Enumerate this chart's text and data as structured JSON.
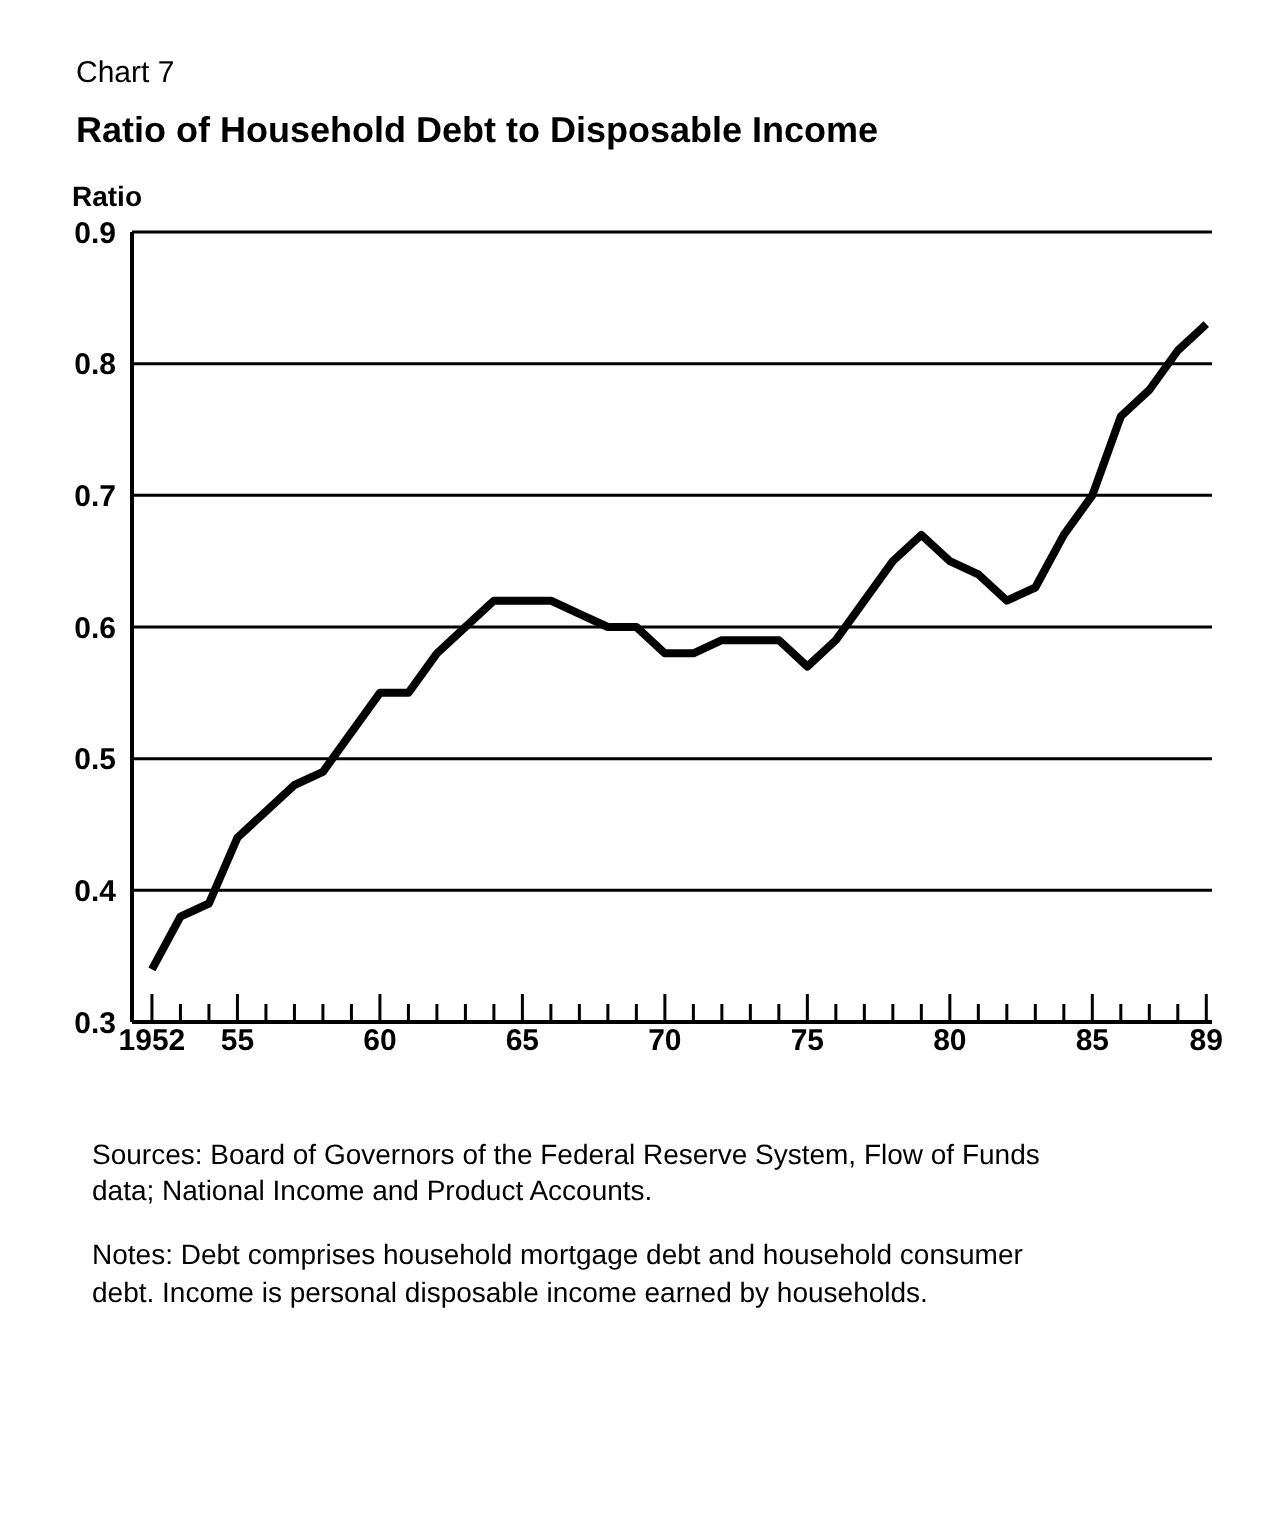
{
  "chart_data": {
    "type": "line",
    "subtitle": "Chart 7",
    "title": "Ratio of Household Debt to Disposable Income",
    "ylabel": "Ratio",
    "x": [
      1952,
      1953,
      1954,
      1955,
      1956,
      1957,
      1958,
      1959,
      1960,
      1961,
      1962,
      1963,
      1964,
      1965,
      1966,
      1967,
      1968,
      1969,
      1970,
      1971,
      1972,
      1973,
      1974,
      1975,
      1976,
      1977,
      1978,
      1979,
      1980,
      1981,
      1982,
      1983,
      1984,
      1985,
      1986,
      1987,
      1988,
      1989
    ],
    "series": [
      {
        "color": "#000000",
        "values": [
          0.34,
          0.38,
          0.39,
          0.44,
          0.46,
          0.48,
          0.49,
          0.52,
          0.55,
          0.55,
          0.58,
          0.6,
          0.62,
          0.62,
          0.62,
          0.61,
          0.6,
          0.6,
          0.58,
          0.58,
          0.59,
          0.59,
          0.59,
          0.57,
          0.59,
          0.62,
          0.65,
          0.67,
          0.65,
          0.64,
          0.62,
          0.63,
          0.67,
          0.7,
          0.76,
          0.78,
          0.81,
          0.83
        ]
      }
    ],
    "xlim": [
      1951.3,
      1989.2
    ],
    "xticks": [
      {
        "value": 1952,
        "label": "1952"
      },
      {
        "value": 1953,
        "label": null
      },
      {
        "value": 1954,
        "label": null
      },
      {
        "value": 1955,
        "label": "55"
      },
      {
        "value": 1956,
        "label": null
      },
      {
        "value": 1957,
        "label": null
      },
      {
        "value": 1958,
        "label": null
      },
      {
        "value": 1959,
        "label": null
      },
      {
        "value": 1960,
        "label": "60"
      },
      {
        "value": 1961,
        "label": null
      },
      {
        "value": 1962,
        "label": null
      },
      {
        "value": 1963,
        "label": null
      },
      {
        "value": 1964,
        "label": null
      },
      {
        "value": 1965,
        "label": "65"
      },
      {
        "value": 1966,
        "label": null
      },
      {
        "value": 1967,
        "label": null
      },
      {
        "value": 1968,
        "label": null
      },
      {
        "value": 1969,
        "label": null
      },
      {
        "value": 1970,
        "label": "70"
      },
      {
        "value": 1971,
        "label": null
      },
      {
        "value": 1972,
        "label": null
      },
      {
        "value": 1973,
        "label": null
      },
      {
        "value": 1974,
        "label": null
      },
      {
        "value": 1975,
        "label": "75"
      },
      {
        "value": 1976,
        "label": null
      },
      {
        "value": 1977,
        "label": null
      },
      {
        "value": 1978,
        "label": null
      },
      {
        "value": 1979,
        "label": null
      },
      {
        "value": 1980,
        "label": "80"
      },
      {
        "value": 1981,
        "label": null
      },
      {
        "value": 1982,
        "label": null
      },
      {
        "value": 1983,
        "label": null
      },
      {
        "value": 1984,
        "label": null
      },
      {
        "value": 1985,
        "label": "85"
      },
      {
        "value": 1986,
        "label": null
      },
      {
        "value": 1987,
        "label": null
      },
      {
        "value": 1988,
        "label": null
      },
      {
        "value": 1989,
        "label": "89"
      }
    ],
    "ylim": [
      0.3,
      0.9
    ],
    "yticks": [
      0.3,
      0.4,
      0.5,
      0.6,
      0.7,
      0.8,
      0.9
    ],
    "grid": "y",
    "marker": "none",
    "line_style": "solid",
    "annotations": [
      "Sources: Board of Governors of the Federal Reserve System, Flow of Funds data; National Income and Product Accounts.",
      "Notes: Debt comprises household mortgage debt and household consumer debt. Income is personal disposable income earned by households."
    ]
  }
}
